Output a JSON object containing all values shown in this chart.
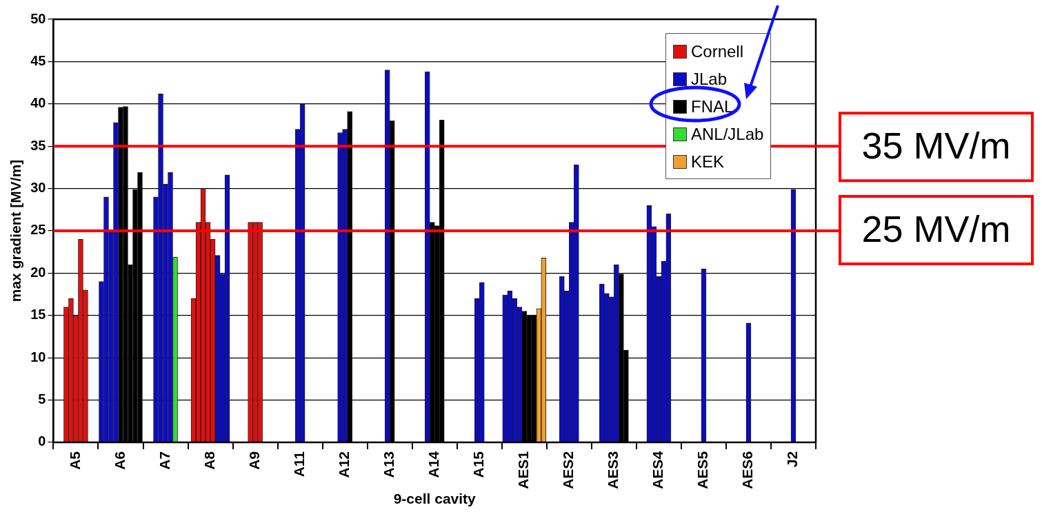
{
  "chart_data": {
    "type": "bar",
    "xlabel": "9-cell cavity",
    "ylabel": "max gradient [MV/m]",
    "categories": [
      "A5",
      "A6",
      "A7",
      "A8",
      "A9",
      "A11",
      "A12",
      "A13",
      "A14",
      "A15",
      "AES1",
      "AES2",
      "AES3",
      "AES4",
      "AES5",
      "AES6",
      "J2"
    ],
    "series": [
      {
        "name": "Cornell",
        "color": "#e01010",
        "values": [
          16,
          null,
          null,
          17,
          26,
          null,
          null,
          null,
          null,
          null,
          null,
          null,
          null,
          null,
          null,
          null,
          null
        ]
      },
      {
        "color": "#e01010",
        "values": [
          17,
          null,
          null,
          26,
          26,
          null,
          null,
          null,
          null,
          null,
          null,
          null,
          null,
          null,
          null,
          null,
          null
        ]
      },
      {
        "color": "#e01010",
        "values": [
          15,
          null,
          null,
          30,
          26,
          null,
          null,
          null,
          null,
          null,
          null,
          null,
          null,
          null,
          null,
          null,
          null
        ]
      },
      {
        "color": "#e01010",
        "values": [
          24,
          null,
          null,
          26,
          null,
          null,
          null,
          null,
          null,
          null,
          null,
          null,
          null,
          null,
          null,
          null,
          null
        ]
      },
      {
        "color": "#e01010",
        "values": [
          18,
          null,
          null,
          24,
          null,
          null,
          null,
          null,
          null,
          null,
          null,
          null,
          null,
          null,
          null,
          null,
          null
        ]
      },
      {
        "name": "JLab",
        "color": "#0c0cc4",
        "values": [
          null,
          19,
          29,
          22.1,
          null,
          37,
          36.6,
          44,
          43.8,
          17,
          17.4,
          19.6,
          18.7,
          28,
          20.5,
          14.1,
          29.9
        ]
      },
      {
        "color": "#0c0cc4",
        "values": [
          null,
          29,
          41.2,
          19.9,
          null,
          40,
          37,
          null,
          null,
          18.9,
          17.9,
          17.9,
          17.6,
          25.5,
          null,
          null,
          null
        ]
      },
      {
        "color": "#0c0cc4",
        "values": [
          null,
          25,
          30.5,
          31.6,
          null,
          null,
          null,
          null,
          null,
          null,
          17,
          26,
          17.2,
          19.6,
          null,
          null,
          null
        ]
      },
      {
        "color": "#0c0cc4",
        "values": [
          null,
          37.8,
          31.9,
          null,
          null,
          null,
          null,
          null,
          null,
          null,
          16,
          32.8,
          21,
          21.4,
          null,
          null,
          null
        ]
      },
      {
        "color": "#0c0cc4",
        "values": [
          null,
          null,
          null,
          null,
          null,
          null,
          null,
          null,
          null,
          null,
          null,
          null,
          null,
          27,
          null,
          null,
          null
        ]
      },
      {
        "name": "FNAL",
        "color": "#000000",
        "values": [
          null,
          39.6,
          null,
          null,
          null,
          null,
          39.1,
          38,
          26,
          null,
          15.5,
          null,
          19.9,
          null,
          null,
          null,
          null
        ]
      },
      {
        "color": "#000000",
        "values": [
          null,
          39.7,
          null,
          null,
          null,
          null,
          null,
          null,
          25.6,
          null,
          15,
          null,
          10.9,
          null,
          null,
          null,
          null
        ]
      },
      {
        "color": "#000000",
        "values": [
          null,
          21,
          null,
          null,
          null,
          null,
          null,
          null,
          38.1,
          null,
          15,
          null,
          null,
          null,
          null,
          null,
          null
        ]
      },
      {
        "color": "#000000",
        "values": [
          null,
          29.9,
          null,
          null,
          null,
          null,
          null,
          null,
          null,
          null,
          null,
          null,
          null,
          null,
          null,
          null,
          null
        ]
      },
      {
        "color": "#000000",
        "values": [
          null,
          31.9,
          null,
          null,
          null,
          null,
          null,
          null,
          null,
          null,
          null,
          null,
          null,
          null,
          null,
          null,
          null
        ]
      },
      {
        "name": "ANL/JLab",
        "color": "#33dd33",
        "values": [
          null,
          null,
          21.9,
          null,
          null,
          null,
          null,
          null,
          null,
          null,
          null,
          null,
          null,
          null,
          null,
          null,
          null
        ]
      },
      {
        "name": "KEK",
        "color": "#f0a030",
        "values": [
          null,
          null,
          null,
          null,
          null,
          null,
          null,
          null,
          null,
          null,
          15.8,
          null,
          null,
          null,
          null,
          null,
          null
        ]
      },
      {
        "color": "#f0a030",
        "values": [
          null,
          null,
          null,
          null,
          null,
          null,
          null,
          null,
          null,
          null,
          21.8,
          null,
          null,
          null,
          null,
          null,
          null
        ]
      }
    ],
    "ylim": [
      0,
      50
    ],
    "yticks": [
      0,
      5,
      10,
      15,
      20,
      25,
      30,
      35,
      40,
      45,
      50
    ],
    "grid": "y",
    "legend": "top right",
    "ref_lines": [
      {
        "axis": "y",
        "value": 35,
        "label": "35 MV/m",
        "color": "#ff0000"
      },
      {
        "axis": "y",
        "value": 25,
        "label": "25 MV/m",
        "color": "#ff0000"
      }
    ]
  }
}
